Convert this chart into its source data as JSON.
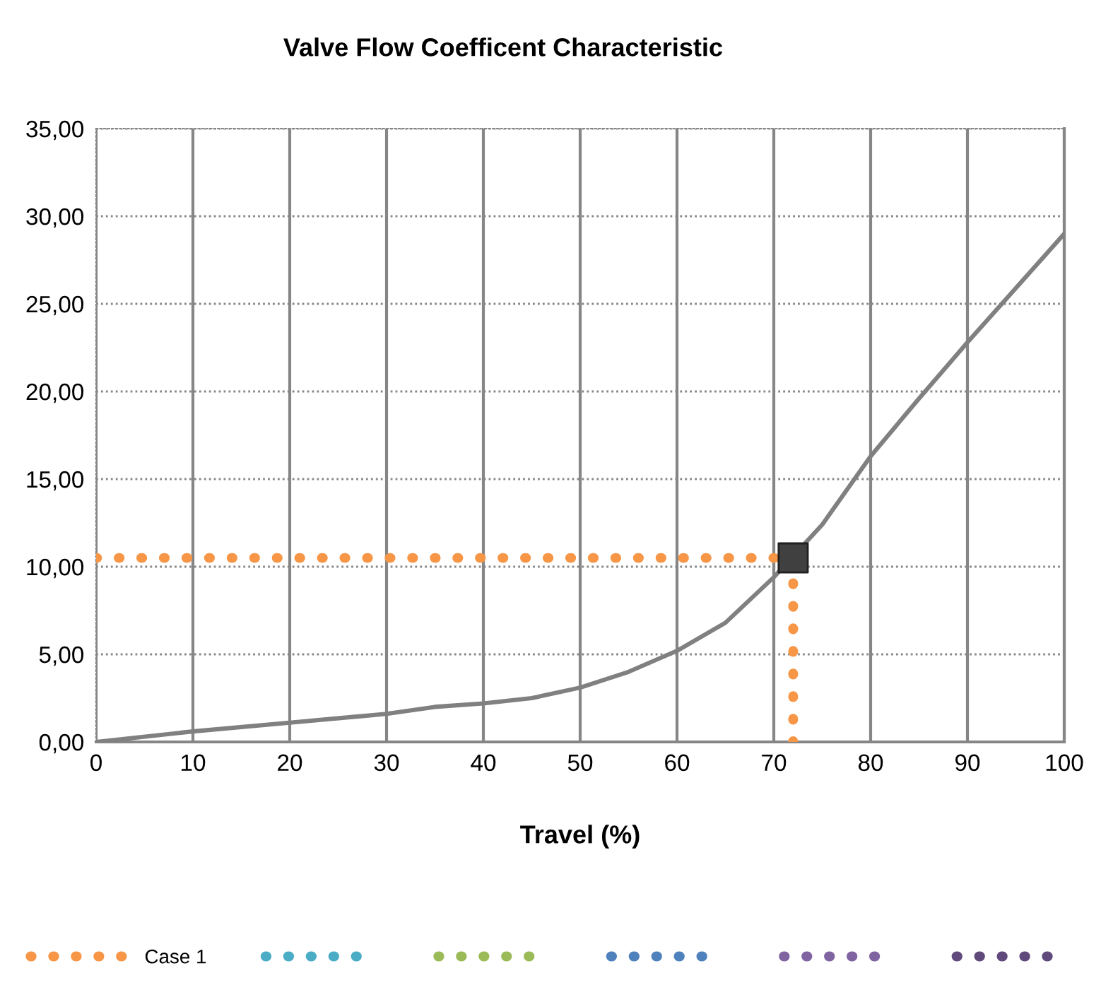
{
  "chart_data": {
    "type": "line",
    "title": "Valve Flow Coefficent Characteristic",
    "xlabel": "Travel (%)",
    "xlim": [
      0,
      100
    ],
    "xticks": [
      0,
      10,
      20,
      30,
      40,
      50,
      60,
      70,
      80,
      90,
      100
    ],
    "ylim": [
      0,
      35
    ],
    "yticks": [
      {
        "value": 0,
        "label": "0,00"
      },
      {
        "value": 5,
        "label": "5,00"
      },
      {
        "value": 10,
        "label": "10,00"
      },
      {
        "value": 15,
        "label": "15,00"
      },
      {
        "value": 20,
        "label": "20,00"
      },
      {
        "value": 25,
        "label": "25,00"
      },
      {
        "value": 30,
        "label": "30,00"
      },
      {
        "value": 35,
        "label": "35,00"
      }
    ],
    "grid": true,
    "legend": "bottom",
    "series": [
      {
        "color": "#808080",
        "line_style": "solid",
        "marker": "none",
        "x": [
          0,
          10,
          20,
          30,
          35,
          40,
          45,
          50,
          55,
          60,
          65,
          70,
          75,
          80,
          85,
          90,
          95,
          100
        ],
        "values": [
          0,
          0.6,
          1.1,
          1.6,
          2.0,
          2.2,
          2.5,
          3.1,
          4.0,
          5.2,
          6.8,
          9.4,
          12.4,
          16.3,
          19.6,
          22.8,
          25.9,
          29.0
        ]
      },
      {
        "name": "Case 1",
        "type": "line",
        "color": "#f79646",
        "line_style": "dotted",
        "marker": "none",
        "x": [
          0,
          72,
          72
        ],
        "values": [
          10.5,
          10.5,
          0
        ]
      },
      {
        "type": "scatter",
        "color": "#404040",
        "marker": "square",
        "x": [
          72
        ],
        "values": [
          10.5
        ]
      },
      {
        "type": "line",
        "color": "#4bacc6",
        "line_style": "dotted",
        "marker": "none"
      },
      {
        "type": "line",
        "color": "#9bbb59",
        "line_style": "dotted",
        "marker": "none"
      },
      {
        "type": "line",
        "color": "#4f81bd",
        "line_style": "dotted",
        "marker": "none"
      },
      {
        "type": "line",
        "color": "#8064a2",
        "line_style": "dotted",
        "marker": "none"
      },
      {
        "type": "line",
        "color": "#604a7b",
        "line_style": "dotted",
        "marker": "none"
      }
    ]
  }
}
